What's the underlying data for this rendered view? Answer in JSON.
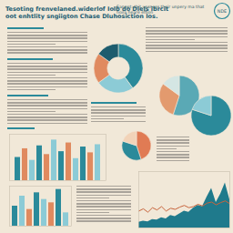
{
  "title": "Tesoting frenvelaned.widerlof Iolb do Diels ibrcit",
  "subtitle": "oot enhtlity sngiigton Chase Dluhosiction Ios.",
  "header_note": "Sannet: tbit uesnoss their unpery ma that hoila heare effion",
  "logo": "NDE",
  "chart_data": [
    {
      "type": "donut",
      "values": [
        40,
        25,
        20,
        15
      ],
      "colors": [
        "#2b8a9a",
        "#8ccbd6",
        "#e08a5f",
        "#1d5c6e"
      ]
    },
    {
      "type": "pie",
      "values": [
        55,
        30,
        15
      ],
      "colors": [
        "#5aa9b5",
        "#e39a6e",
        "#d4e6e3"
      ]
    },
    {
      "type": "pie",
      "values": [
        80,
        20
      ],
      "colors": [
        "#2b8a9a",
        "#8ccbd6"
      ]
    },
    {
      "type": "pie",
      "values": [
        45,
        35,
        20
      ],
      "colors": [
        "#e07b54",
        "#2b8a9a",
        "#f2d3b8"
      ]
    },
    {
      "type": "bar",
      "categories": [
        null,
        null,
        null,
        null,
        null,
        null,
        null,
        null,
        null,
        null,
        null,
        null
      ],
      "values": [
        40,
        55,
        35,
        60,
        45,
        70,
        50,
        65,
        38,
        58,
        48,
        62
      ],
      "colors": [
        "#2b8a9a",
        "#e08a5f",
        "#8ccbd6",
        "#2b8a9a",
        "#e08a5f",
        "#8ccbd6",
        "#2b8a9a",
        "#e08a5f",
        "#8ccbd6",
        "#2b8a9a",
        "#e08a5f",
        "#8ccbd6"
      ],
      "ylim": [
        0,
        80
      ],
      "tick_labels": false
    },
    {
      "type": "bar",
      "categories": [
        null,
        null,
        null,
        null,
        null,
        null,
        null,
        null
      ],
      "values": [
        30,
        45,
        25,
        50,
        40,
        35,
        55,
        20
      ],
      "colors": [
        "#2b8a9a",
        "#8ccbd6",
        "#e08a5f",
        "#2b8a9a",
        "#8ccbd6",
        "#e08a5f",
        "#2b8a9a",
        "#8ccbd6"
      ],
      "ylim": [
        0,
        60
      ],
      "tick_labels": false
    },
    {
      "type": "area",
      "x": [
        0,
        1,
        2,
        3,
        4,
        5,
        6,
        7,
        8,
        9,
        10,
        11,
        12,
        13,
        14,
        15,
        16,
        17,
        18,
        19,
        20
      ],
      "series": [
        {
          "type": "area",
          "color": "#1f7a8c",
          "values": [
            10,
            12,
            11,
            15,
            14,
            18,
            16,
            22,
            20,
            25,
            30,
            28,
            35,
            40,
            38,
            55,
            70,
            45,
            60,
            80,
            50
          ]
        },
        {
          "type": "line",
          "color": "#c8643c",
          "values": [
            30,
            34,
            28,
            36,
            32,
            38,
            30,
            35,
            33,
            37,
            40,
            36,
            38,
            42,
            39,
            44,
            46,
            41,
            45,
            48,
            43
          ]
        }
      ],
      "xlim": [
        0,
        20
      ],
      "ylim": [
        0,
        100
      ],
      "tick_labels": false
    }
  ]
}
